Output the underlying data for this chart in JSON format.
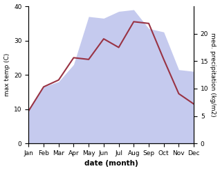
{
  "months": [
    "Jan",
    "Feb",
    "Mar",
    "Apr",
    "May",
    "Jun",
    "Jul",
    "Aug",
    "Sep",
    "Oct",
    "Nov",
    "Dec"
  ],
  "temp_max": [
    9.5,
    16.5,
    18.5,
    25.0,
    24.5,
    30.5,
    28.0,
    35.5,
    35.0,
    24.5,
    14.5,
    11.5
  ],
  "precipitation_left_scale": [
    10.0,
    16.5,
    18.0,
    23.0,
    37.0,
    36.5,
    38.5,
    39.0,
    33.5,
    32.5,
    21.5,
    21.0
  ],
  "temp_color": "#993344",
  "precip_fill_color": "#c5caee",
  "xlabel": "date (month)",
  "ylabel_left": "max temp (C)",
  "ylabel_right": "med. precipitation (kg/m2)",
  "ylim_left": [
    0,
    40
  ],
  "yticks_left": [
    0,
    10,
    20,
    30,
    40
  ],
  "yticks_right": [
    0,
    5,
    10,
    15,
    20
  ],
  "ylim_right": [
    0,
    25
  ],
  "background_color": "#ffffff",
  "line_width": 1.5,
  "xlabel_fontsize": 7.5,
  "ylabel_fontsize": 6.5,
  "tick_fontsize": 6.5
}
